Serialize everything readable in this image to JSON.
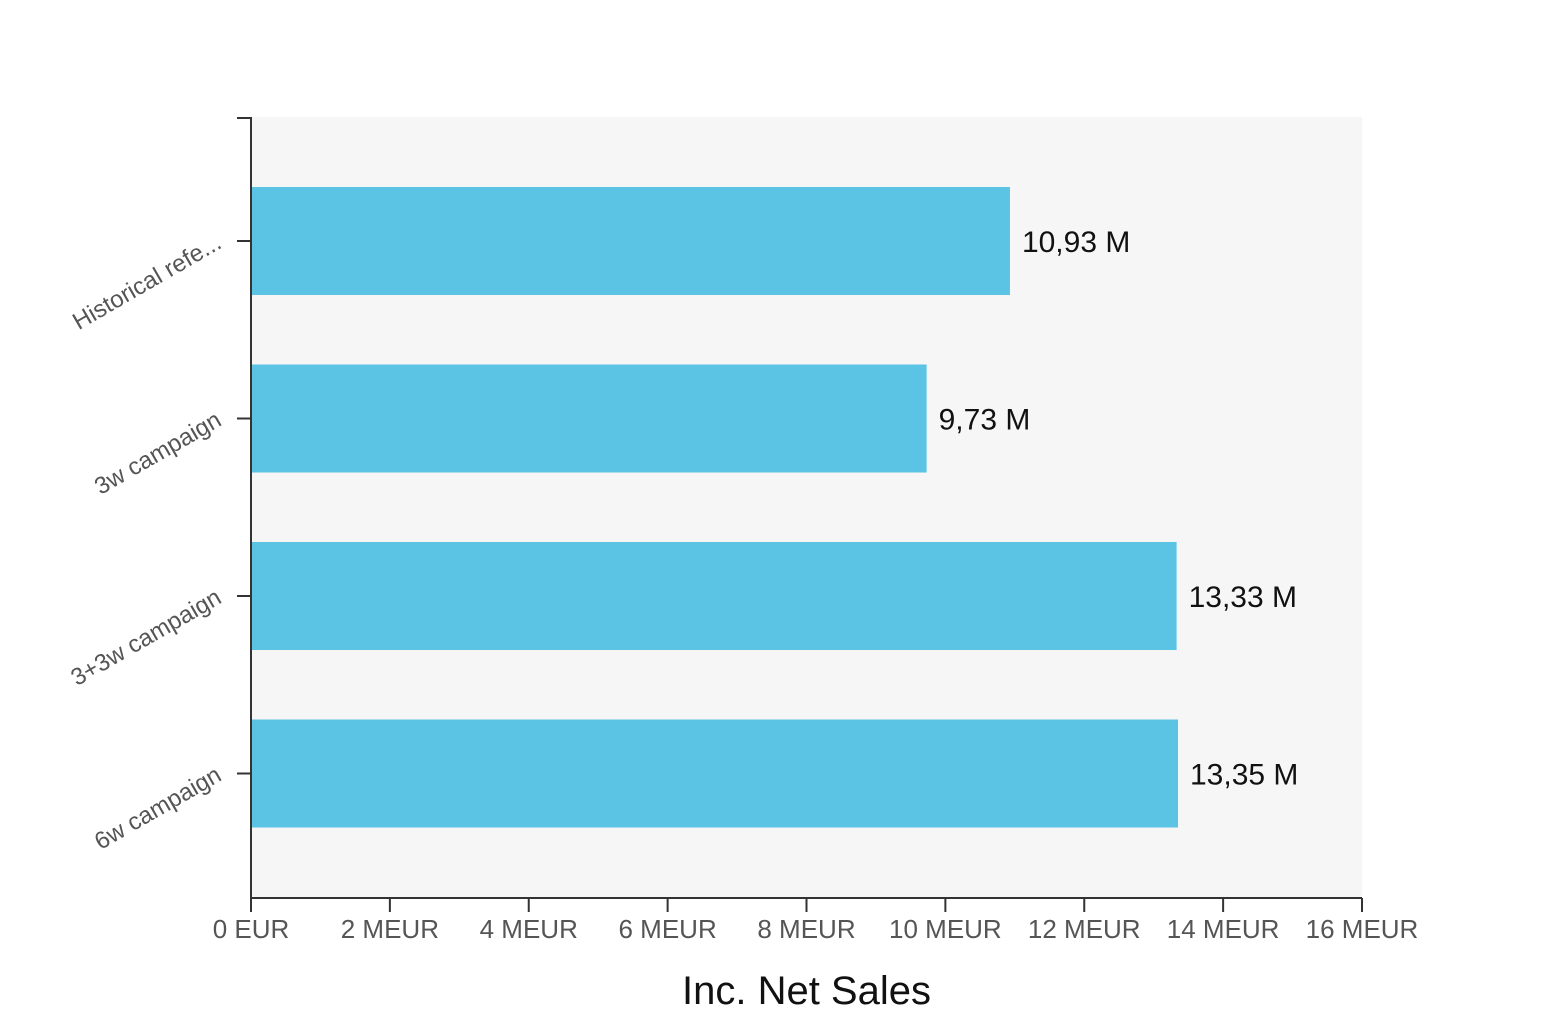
{
  "colors": {
    "bar": "#5bc3e4",
    "plot_background": "#f6f6f6",
    "axis": "#333333"
  },
  "chart_data": {
    "type": "bar",
    "orientation": "horizontal",
    "title": "",
    "xlabel": "Inc. Net Sales",
    "ylabel": "",
    "categories": [
      "Historical refe...",
      "3w campaign",
      "3+3w campaign",
      "6w campaign"
    ],
    "values": [
      10.93,
      9.73,
      13.33,
      13.35
    ],
    "value_labels": [
      "10,93 M",
      "9,73 M",
      "13,33 M",
      "13,35 M"
    ],
    "unit": "MEUR",
    "xlim": [
      0,
      16
    ],
    "x_ticks": [
      0,
      2,
      4,
      6,
      8,
      10,
      12,
      14,
      16
    ],
    "x_tick_labels": [
      "0 EUR",
      "2 MEUR",
      "4 MEUR",
      "6 MEUR",
      "8 MEUR",
      "10 MEUR",
      "12 MEUR",
      "14 MEUR",
      "16 MEUR"
    ],
    "grid": false,
    "legend": "none"
  }
}
